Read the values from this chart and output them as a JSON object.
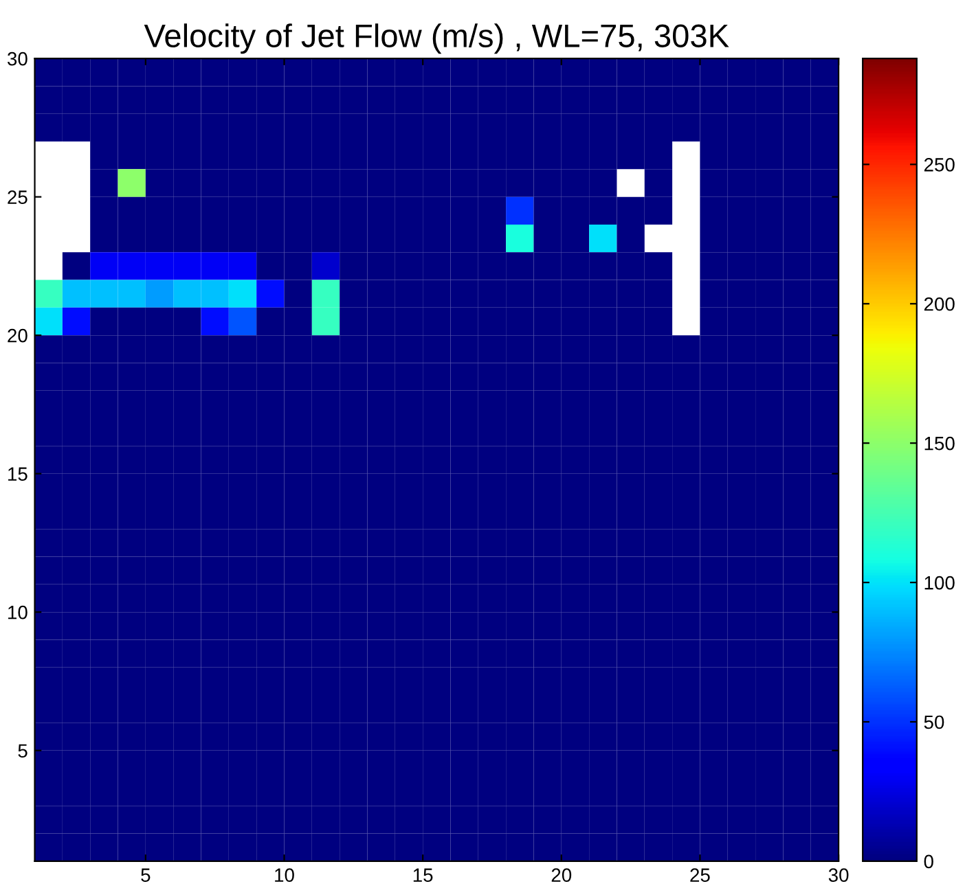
{
  "chart_data": {
    "type": "heatmap",
    "title": "Velocity of Jet Flow (m/s) , WL=75, 303K",
    "x": [
      1.5,
      2.5,
      3.5,
      4.5,
      5.5,
      6.5,
      7.5,
      8.5,
      9.5,
      10.5,
      11.5,
      12.5,
      13.5,
      14.5,
      15.5,
      16.5,
      17.5,
      18.5,
      19.5,
      20.5,
      21.5,
      22.5,
      23.5,
      24.5,
      25.5,
      26.5,
      27.5,
      28.5,
      29.5
    ],
    "y": [
      29.5,
      28.5,
      27.5,
      26.5,
      25.5,
      24.5,
      23.5,
      22.5,
      21.5,
      20.5,
      19.5,
      18.5,
      17.5,
      16.5,
      15.5,
      14.5,
      13.5,
      12.5,
      11.5,
      10.5,
      9.5,
      8.5,
      7.5,
      6.5,
      5.5,
      4.5,
      3.5,
      2.5,
      1.5
    ],
    "cells": [
      [
        0,
        0,
        0,
        0,
        0,
        0,
        0,
        0,
        0,
        0,
        0,
        0,
        0,
        0,
        0,
        0,
        0,
        0,
        0,
        0,
        0,
        0,
        0,
        0,
        0,
        0,
        0,
        0,
        0
      ],
      [
        0,
        0,
        0,
        0,
        0,
        0,
        0,
        0,
        0,
        0,
        0,
        0,
        0,
        0,
        0,
        0,
        0,
        0,
        0,
        0,
        0,
        0,
        0,
        0,
        0,
        0,
        0,
        0,
        0
      ],
      [
        0,
        0,
        0,
        0,
        0,
        0,
        0,
        0,
        0,
        0,
        0,
        0,
        0,
        0,
        0,
        0,
        0,
        0,
        0,
        0,
        0,
        0,
        0,
        0,
        0,
        0,
        0,
        0,
        0
      ],
      [
        null,
        null,
        0,
        0,
        0,
        0,
        0,
        0,
        0,
        0,
        0,
        0,
        0,
        0,
        0,
        0,
        0,
        0,
        0,
        0,
        0,
        0,
        0,
        null,
        0,
        0,
        0,
        0,
        0
      ],
      [
        null,
        null,
        0,
        150,
        0,
        0,
        0,
        0,
        0,
        0,
        0,
        0,
        0,
        0,
        0,
        0,
        0,
        0,
        0,
        0,
        0,
        null,
        0,
        null,
        0,
        0,
        0,
        0,
        0
      ],
      [
        null,
        null,
        0,
        0,
        0,
        0,
        0,
        0,
        0,
        0,
        0,
        0,
        0,
        0,
        0,
        0,
        0,
        50,
        0,
        0,
        0,
        0,
        0,
        null,
        0,
        0,
        0,
        0,
        0
      ],
      [
        null,
        null,
        0,
        0,
        0,
        0,
        0,
        0,
        0,
        0,
        0,
        0,
        0,
        0,
        0,
        0,
        0,
        110,
        0,
        0,
        100,
        0,
        null,
        null,
        0,
        0,
        0,
        0,
        0
      ],
      [
        null,
        0,
        30,
        30,
        30,
        30,
        30,
        30,
        0,
        0,
        20,
        0,
        0,
        0,
        0,
        0,
        0,
        0,
        0,
        0,
        0,
        0,
        0,
        null,
        0,
        0,
        0,
        0,
        0
      ],
      [
        120,
        90,
        90,
        90,
        80,
        90,
        90,
        100,
        40,
        0,
        120,
        0,
        0,
        0,
        0,
        0,
        0,
        0,
        0,
        0,
        0,
        0,
        0,
        null,
        0,
        0,
        0,
        0,
        0
      ],
      [
        100,
        40,
        0,
        0,
        0,
        0,
        40,
        60,
        0,
        0,
        120,
        0,
        0,
        0,
        0,
        0,
        0,
        0,
        0,
        0,
        0,
        0,
        0,
        null,
        0,
        0,
        0,
        0,
        0
      ],
      [
        0,
        0,
        0,
        0,
        0,
        0,
        0,
        0,
        0,
        0,
        0,
        0,
        0,
        0,
        0,
        0,
        0,
        0,
        0,
        0,
        0,
        0,
        0,
        0,
        0,
        0,
        0,
        0,
        0
      ],
      [
        0,
        0,
        0,
        0,
        0,
        0,
        0,
        0,
        0,
        0,
        0,
        0,
        0,
        0,
        0,
        0,
        0,
        0,
        0,
        0,
        0,
        0,
        0,
        0,
        0,
        0,
        0,
        0,
        0
      ],
      [
        0,
        0,
        0,
        0,
        0,
        0,
        0,
        0,
        0,
        0,
        0,
        0,
        0,
        0,
        0,
        0,
        0,
        0,
        0,
        0,
        0,
        0,
        0,
        0,
        0,
        0,
        0,
        0,
        0
      ],
      [
        0,
        0,
        0,
        0,
        0,
        0,
        0,
        0,
        0,
        0,
        0,
        0,
        0,
        0,
        0,
        0,
        0,
        0,
        0,
        0,
        0,
        0,
        0,
        0,
        0,
        0,
        0,
        0,
        0
      ],
      [
        0,
        0,
        0,
        0,
        0,
        0,
        0,
        0,
        0,
        0,
        0,
        0,
        0,
        0,
        0,
        0,
        0,
        0,
        0,
        0,
        0,
        0,
        0,
        0,
        0,
        0,
        0,
        0,
        0
      ],
      [
        0,
        0,
        0,
        0,
        0,
        0,
        0,
        0,
        0,
        0,
        0,
        0,
        0,
        0,
        0,
        0,
        0,
        0,
        0,
        0,
        0,
        0,
        0,
        0,
        0,
        0,
        0,
        0,
        0
      ],
      [
        0,
        0,
        0,
        0,
        0,
        0,
        0,
        0,
        0,
        0,
        0,
        0,
        0,
        0,
        0,
        0,
        0,
        0,
        0,
        0,
        0,
        0,
        0,
        0,
        0,
        0,
        0,
        0,
        0
      ],
      [
        0,
        0,
        0,
        0,
        0,
        0,
        0,
        0,
        0,
        0,
        0,
        0,
        0,
        0,
        0,
        0,
        0,
        0,
        0,
        0,
        0,
        0,
        0,
        0,
        0,
        0,
        0,
        0,
        0
      ],
      [
        0,
        0,
        0,
        0,
        0,
        0,
        0,
        0,
        0,
        0,
        0,
        0,
        0,
        0,
        0,
        0,
        0,
        0,
        0,
        0,
        0,
        0,
        0,
        0,
        0,
        0,
        0,
        0,
        0
      ],
      [
        0,
        0,
        0,
        0,
        0,
        0,
        0,
        0,
        0,
        0,
        0,
        0,
        0,
        0,
        0,
        0,
        0,
        0,
        0,
        0,
        0,
        0,
        0,
        0,
        0,
        0,
        0,
        0,
        0
      ],
      [
        0,
        0,
        0,
        0,
        0,
        0,
        0,
        0,
        0,
        0,
        0,
        0,
        0,
        0,
        0,
        0,
        0,
        0,
        0,
        0,
        0,
        0,
        0,
        0,
        0,
        0,
        0,
        0,
        0
      ],
      [
        0,
        0,
        0,
        0,
        0,
        0,
        0,
        0,
        0,
        0,
        0,
        0,
        0,
        0,
        0,
        0,
        0,
        0,
        0,
        0,
        0,
        0,
        0,
        0,
        0,
        0,
        0,
        0,
        0
      ],
      [
        0,
        0,
        0,
        0,
        0,
        0,
        0,
        0,
        0,
        0,
        0,
        0,
        0,
        0,
        0,
        0,
        0,
        0,
        0,
        0,
        0,
        0,
        0,
        0,
        0,
        0,
        0,
        0,
        0
      ],
      [
        0,
        0,
        0,
        0,
        0,
        0,
        0,
        0,
        0,
        0,
        0,
        0,
        0,
        0,
        0,
        0,
        0,
        0,
        0,
        0,
        0,
        0,
        0,
        0,
        0,
        0,
        0,
        0,
        0
      ],
      [
        0,
        0,
        0,
        0,
        0,
        0,
        0,
        0,
        0,
        0,
        0,
        0,
        0,
        0,
        0,
        0,
        0,
        0,
        0,
        0,
        0,
        0,
        0,
        0,
        0,
        0,
        0,
        0,
        0
      ],
      [
        0,
        0,
        0,
        0,
        0,
        0,
        0,
        0,
        0,
        0,
        0,
        0,
        0,
        0,
        0,
        0,
        0,
        0,
        0,
        0,
        0,
        0,
        0,
        0,
        0,
        0,
        0,
        0,
        0
      ],
      [
        0,
        0,
        0,
        0,
        0,
        0,
        0,
        0,
        0,
        0,
        0,
        0,
        0,
        0,
        0,
        0,
        0,
        0,
        0,
        0,
        0,
        0,
        0,
        0,
        0,
        0,
        0,
        0,
        0
      ],
      [
        0,
        0,
        0,
        0,
        0,
        0,
        0,
        0,
        0,
        0,
        0,
        0,
        0,
        0,
        0,
        0,
        0,
        0,
        0,
        0,
        0,
        0,
        0,
        0,
        0,
        0,
        0,
        0,
        0
      ],
      [
        0,
        0,
        0,
        0,
        0,
        0,
        0,
        0,
        0,
        0,
        0,
        0,
        0,
        0,
        0,
        0,
        0,
        0,
        0,
        0,
        0,
        0,
        0,
        0,
        0,
        0,
        0,
        0,
        0
      ]
    ],
    "xlim": [
      1,
      30
    ],
    "ylim": [
      1,
      30
    ],
    "xticks": [
      5,
      10,
      15,
      20,
      25,
      30
    ],
    "yticks": [
      5,
      10,
      15,
      20,
      25,
      30
    ],
    "clim": [
      0,
      288
    ],
    "cticks": [
      0,
      50,
      100,
      150,
      200,
      250
    ]
  }
}
